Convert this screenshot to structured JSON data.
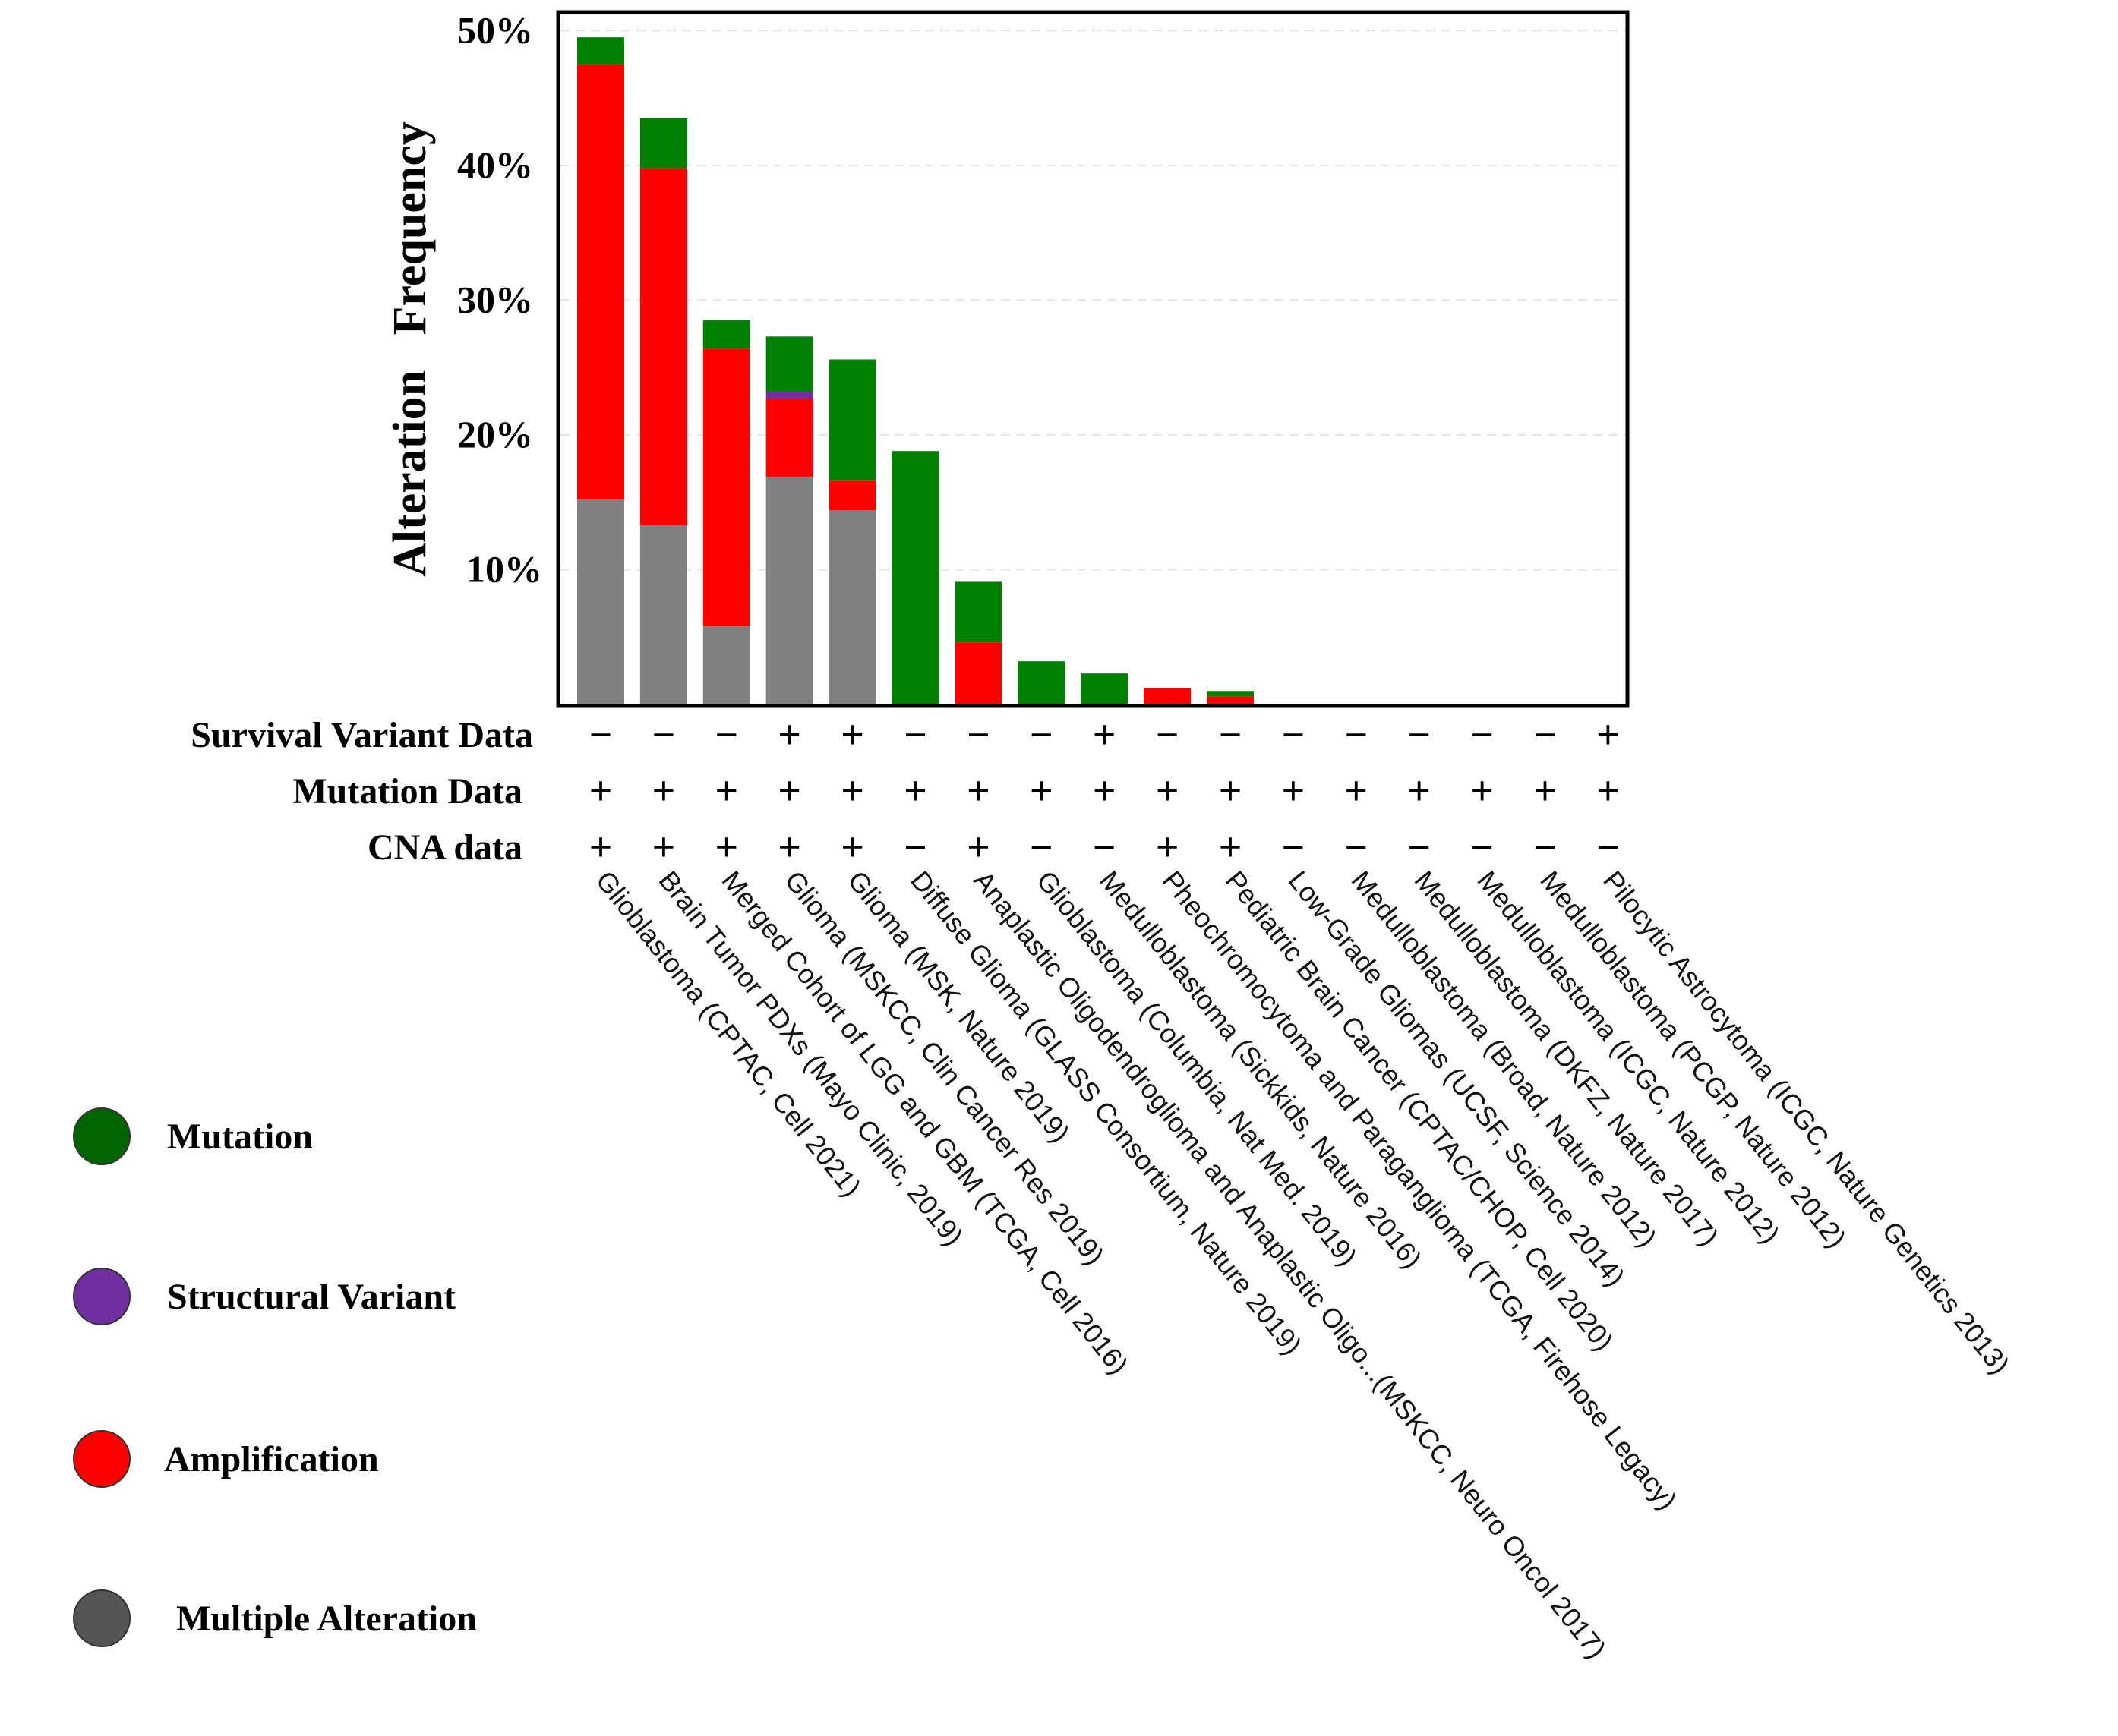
{
  "chart_data": {
    "type": "bar",
    "stacked": true,
    "ylabel": "Alteration   Frequency",
    "ylim": [
      0,
      50
    ],
    "yticks": [
      10,
      20,
      30,
      40,
      50
    ],
    "ytick_labels": [
      "10%",
      "20%",
      "30%",
      "40%",
      "50%"
    ],
    "grid": true,
    "categories": [
      "Glioblastoma (CPTAC, Cell 2021)",
      "Brain Tumor PDXs (Mayo Clinic, 2019)",
      "Merged Cohort of LGG and GBM (TCGA, Cell 2016)",
      "Glioma (MSKCC, Clin Cancer Res 2019)",
      "Glioma (MSK, Nature 2019)",
      "Diffuse Glioma (GLASS Consortium, Nature 2019)",
      "Anaplastic Oligodendroglioma and Anaplastic Oligo...(MSKCC, Neuro Oncol 2017)",
      "Glioblastoma (Columbia, Nat Med. 2019)",
      "Medulloblastoma (Sickkids, Nature 2016)",
      "Pheochromocytoma and Paraganglioma (TCGA, Firehose Legacy)",
      "Pediatric Brain Cancer (CPTAC/CHOP, Cell 2020)",
      "Low-Grade Gliomas (UCSF, Science 2014)",
      "Medulloblastoma (Broad, Nature 2012)",
      "Medulloblastoma (DKFZ, Nature 2017)",
      "Medulloblastoma (ICGC, Nature 2012)",
      "Medulloblastoma (PCGP, Nature 2012)",
      "Pilocytic Astrocytoma (ICGC, Nature Genetics 2013)"
    ],
    "series": [
      {
        "name": "Multiple Alteration",
        "color": "#808080",
        "values": [
          15.2,
          13.3,
          5.8,
          16.9,
          14.4,
          0,
          0,
          0,
          0,
          0,
          0,
          0,
          0,
          0,
          0,
          0,
          0
        ]
      },
      {
        "name": "Amplification",
        "color": "#ff0000",
        "values": [
          32.3,
          26.5,
          20.6,
          5.8,
          2.2,
          0,
          4.6,
          0,
          0,
          1.2,
          0.6,
          0,
          0,
          0,
          0,
          0,
          0
        ]
      },
      {
        "name": "Structural Variant",
        "color": "#7030a0",
        "values": [
          0,
          0,
          0,
          0.5,
          0,
          0,
          0,
          0,
          0,
          0,
          0,
          0,
          0,
          0,
          0,
          0,
          0
        ]
      },
      {
        "name": "Mutation",
        "color": "#008000",
        "values": [
          2.0,
          3.7,
          2.1,
          4.1,
          9.0,
          18.8,
          4.5,
          3.2,
          2.3,
          0,
          0.4,
          0,
          0,
          0,
          0,
          0,
          0
        ]
      }
    ],
    "data_rows": [
      {
        "label": "Survival Variant Data",
        "values": [
          "−",
          "−",
          "−",
          "+",
          "+",
          "−",
          "−",
          "−",
          "+",
          "−",
          "−",
          "−",
          "−",
          "−",
          "−",
          "−",
          "+"
        ]
      },
      {
        "label": "Mutation Data",
        "values": [
          "+",
          "+",
          "+",
          "+",
          "+",
          "+",
          "+",
          "+",
          "+",
          "+",
          "+",
          "+",
          "+",
          "+",
          "+",
          "+",
          "+"
        ]
      },
      {
        "label": "CNA data",
        "values": [
          "+",
          "+",
          "+",
          "+",
          "+",
          "−",
          "+",
          "−",
          "−",
          "+",
          "+",
          "−",
          "−",
          "−",
          "−",
          "−",
          "−"
        ]
      }
    ],
    "legend": [
      {
        "label": "Mutation",
        "color": "#006400"
      },
      {
        "label": "Structural Variant",
        "color": "#7030a0"
      },
      {
        "label": "Amplification",
        "color": "#ff0000"
      },
      {
        "label": "Multiple Alteration",
        "color": "#555555"
      }
    ],
    "legend_position": "left-bottom"
  }
}
